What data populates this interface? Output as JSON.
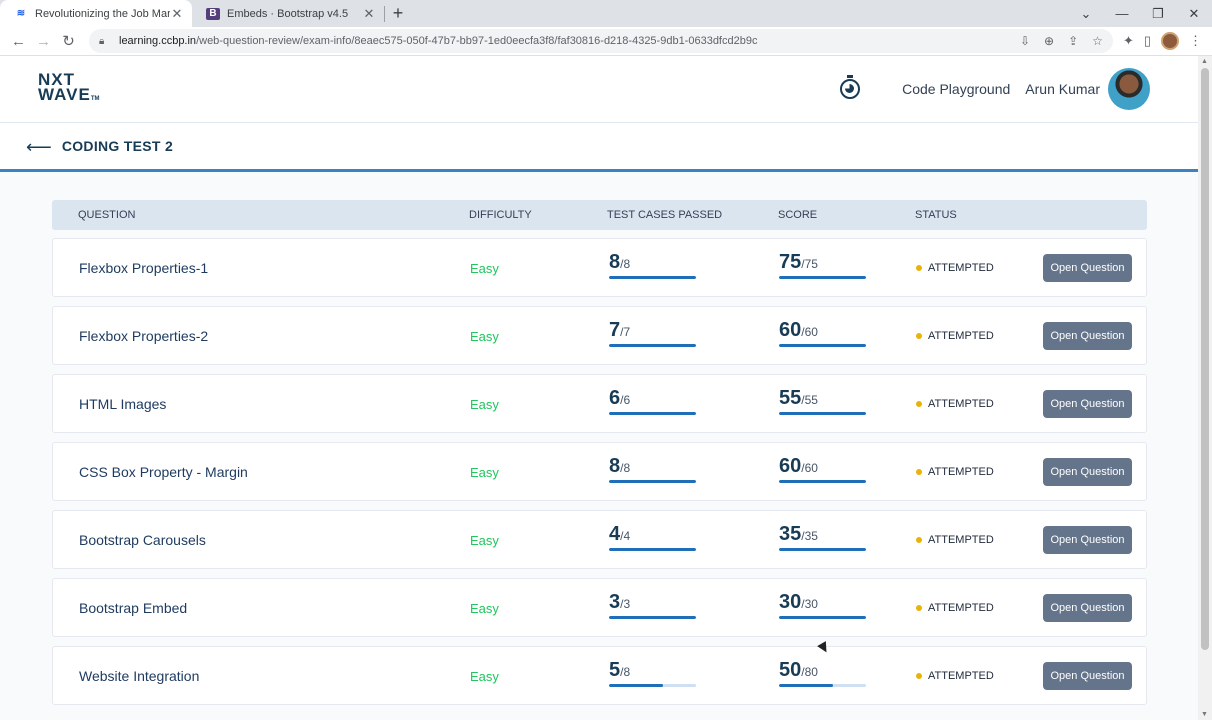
{
  "browser": {
    "tabs": [
      {
        "title": "Revolutionizing the Job Market |",
        "favicon": "nxtwave-favicon",
        "active": true
      },
      {
        "title": "Embeds · Bootstrap v4.5",
        "favicon": "bootstrap-favicon",
        "active": false
      }
    ],
    "url_host": "learning.ccbp.in",
    "url_path": "/web-question-review/exam-info/8eaec575-050f-47b7-bb97-1ed0eecfa3f8/faf30816-d218-4325-9db1-0633dfcd2b9c"
  },
  "header": {
    "logo_line1": "NXT",
    "logo_line2": "WAVE",
    "logo_tm": "TM",
    "code_playground": "Code Playground",
    "user_name": "Arun Kumar"
  },
  "test": {
    "title": "CODING TEST 2"
  },
  "table": {
    "columns": [
      "QUESTION",
      "DIFFICULTY",
      "TEST CASES PASSED",
      "SCORE",
      "STATUS"
    ],
    "button_label": "Open Question",
    "rows": [
      {
        "question": "Flexbox Properties-1",
        "difficulty": "Easy",
        "passed": "8",
        "total_cases": "/8",
        "passed_ratio": 1.0,
        "score": "75",
        "max_score": "/75",
        "score_ratio": 1.0,
        "status": "ATTEMPTED"
      },
      {
        "question": "Flexbox Properties-2",
        "difficulty": "Easy",
        "passed": "7",
        "total_cases": "/7",
        "passed_ratio": 1.0,
        "score": "60",
        "max_score": "/60",
        "score_ratio": 1.0,
        "status": "ATTEMPTED"
      },
      {
        "question": "HTML Images",
        "difficulty": "Easy",
        "passed": "6",
        "total_cases": "/6",
        "passed_ratio": 1.0,
        "score": "55",
        "max_score": "/55",
        "score_ratio": 1.0,
        "status": "ATTEMPTED"
      },
      {
        "question": "CSS Box Property - Margin",
        "difficulty": "Easy",
        "passed": "8",
        "total_cases": "/8",
        "passed_ratio": 1.0,
        "score": "60",
        "max_score": "/60",
        "score_ratio": 1.0,
        "status": "ATTEMPTED"
      },
      {
        "question": "Bootstrap Carousels",
        "difficulty": "Easy",
        "passed": "4",
        "total_cases": "/4",
        "passed_ratio": 1.0,
        "score": "35",
        "max_score": "/35",
        "score_ratio": 1.0,
        "status": "ATTEMPTED"
      },
      {
        "question": "Bootstrap Embed",
        "difficulty": "Easy",
        "passed": "3",
        "total_cases": "/3",
        "passed_ratio": 1.0,
        "score": "30",
        "max_score": "/30",
        "score_ratio": 1.0,
        "status": "ATTEMPTED"
      },
      {
        "question": "Website Integration",
        "difficulty": "Easy",
        "passed": "5",
        "total_cases": "/8",
        "passed_ratio": 0.625,
        "score": "50",
        "max_score": "/80",
        "score_ratio": 0.625,
        "status": "ATTEMPTED"
      }
    ]
  },
  "colors": {
    "accent": "#3b82c4",
    "difficulty_easy": "#22c55e",
    "status_dot": "#eab308",
    "button_bg": "#64748b"
  }
}
